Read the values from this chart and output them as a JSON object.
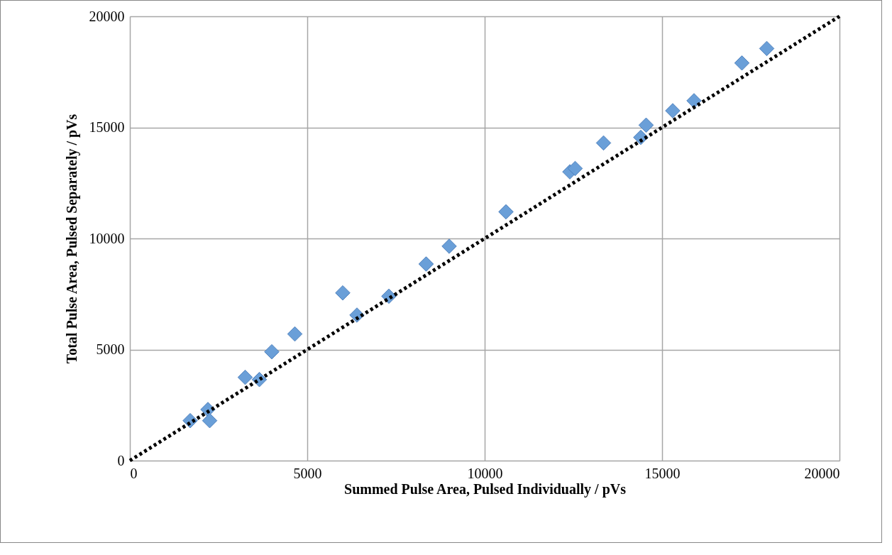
{
  "chart_data": {
    "type": "scatter",
    "xlabel": "Summed Pulse Area, Pulsed Individually / pVs",
    "ylabel": "Total Pulse Area, Pulsed Separately / pVs",
    "xlim": [
      0,
      20000
    ],
    "ylim": [
      0,
      20000
    ],
    "xticks": [
      0,
      5000,
      10000,
      15000,
      20000
    ],
    "yticks": [
      0,
      5000,
      10000,
      15000,
      20000
    ],
    "grid": true,
    "series": [
      {
        "color": "#6a9fd8",
        "marker": "diamond",
        "x": [
          1700,
          2200,
          2250,
          3250,
          3650,
          4000,
          4650,
          6000,
          6400,
          7300,
          8350,
          9000,
          10600,
          12400,
          12550,
          13350,
          14400,
          14550,
          15300,
          15900,
          17250,
          17950
        ],
        "values": [
          1800,
          2300,
          1800,
          3750,
          3650,
          4900,
          5700,
          7550,
          6550,
          7400,
          8850,
          9650,
          11200,
          13000,
          13150,
          14300,
          14550,
          15100,
          15750,
          16200,
          17900,
          18550
        ]
      },
      {
        "type": "line",
        "color": "#000000",
        "marker": "none",
        "line_style": "dotted",
        "x": [
          0,
          20000
        ],
        "values": [
          0,
          20000
        ]
      }
    ]
  }
}
